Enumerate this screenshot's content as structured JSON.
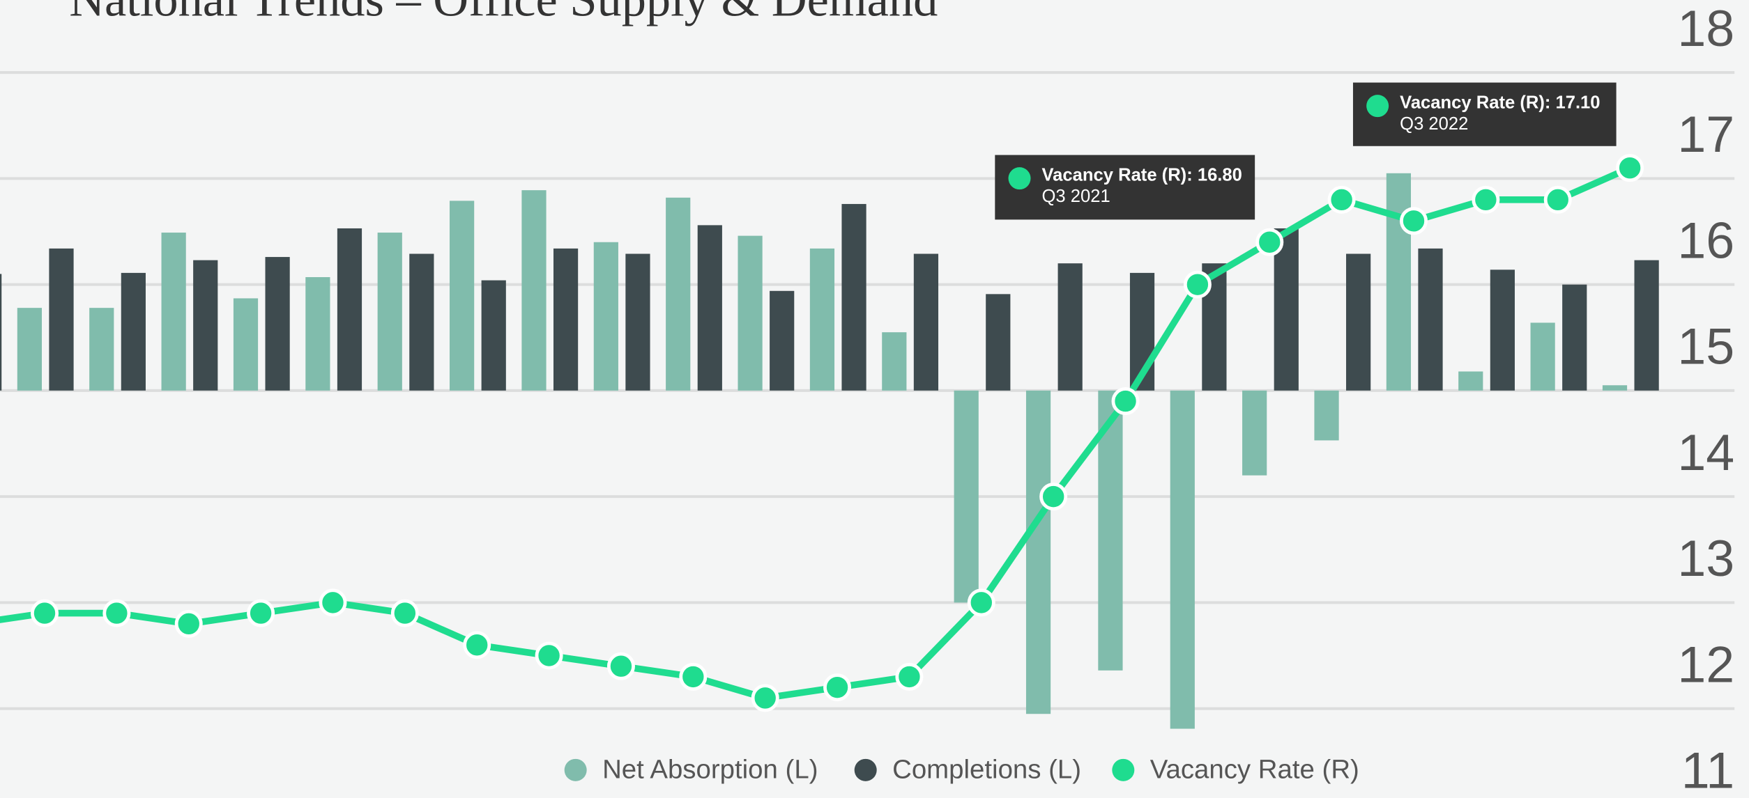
{
  "chart_data": {
    "type": "bar-line",
    "title": "National Trends – Office Supply & Demand",
    "categories": [
      null,
      null,
      null,
      null,
      null,
      null,
      null,
      null,
      null,
      null,
      null,
      null,
      null,
      null,
      null,
      null,
      null,
      null,
      null,
      null,
      null,
      null,
      null,
      null
    ],
    "series": [
      {
        "name": "Net Absorption (L)",
        "color": "#80bcac",
        "kind": "bar",
        "values": [
          null,
          7.8,
          7.8,
          14.9,
          8.7,
          10.7,
          14.9,
          17.9,
          18.9,
          14.0,
          18.2,
          14.6,
          13.4,
          5.5,
          -20,
          -30.5,
          -26.4,
          -31.9,
          -8,
          -4.7,
          20.5,
          1.8,
          6.4,
          0.5
        ]
      },
      {
        "name": "Completions (L)",
        "color": "#3e4b4f",
        "kind": "bar",
        "values": [
          11,
          13.4,
          11.1,
          12.3,
          12.6,
          15.3,
          12.9,
          10.4,
          13.4,
          12.9,
          15.6,
          9.4,
          17.6,
          12.9,
          9.1,
          12.0,
          11.1,
          12.0,
          15.3,
          12.9,
          13.4,
          11.4,
          10.0,
          12.3
        ]
      },
      {
        "name": "Vacancy Rate (R)",
        "color": "#1fdc8f",
        "kind": "line",
        "axis": "y2",
        "values": [
          12.8,
          12.9,
          12.9,
          12.8,
          12.9,
          13.0,
          12.9,
          12.6,
          12.5,
          12.4,
          12.3,
          12.1,
          12.2,
          12.3,
          13.0,
          14.0,
          14.9,
          16.0,
          16.4,
          16.8,
          16.6,
          16.8,
          16.8,
          17.1
        ]
      }
    ],
    "ylim": [
      -40,
      30
    ],
    "y2lim": [
      11,
      18
    ],
    "y2ticks": [
      11,
      12,
      13,
      14,
      15,
      16,
      17,
      18
    ],
    "grid": true,
    "legend": "bottom",
    "annotations": [
      {
        "text": "Vacancy Rate (R): 16.80",
        "subtext": "Q3 2021"
      },
      {
        "text": "Vacancy Rate (R): 17.10",
        "subtext": "Q3 2022"
      }
    ]
  }
}
